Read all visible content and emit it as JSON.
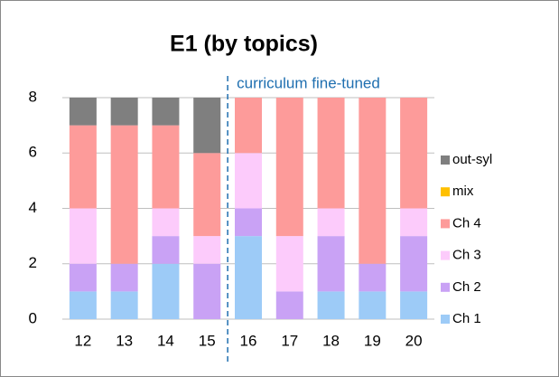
{
  "chart_data": {
    "type": "stacked_bar",
    "title": "E1 (by topics)",
    "annotation": "curriculum fine-tuned",
    "categories": [
      "12",
      "13",
      "14",
      "15",
      "16",
      "17",
      "18",
      "19",
      "20"
    ],
    "series": [
      {
        "name": "Ch 1",
        "color": "#9dcbf7",
        "values": [
          1,
          1,
          2,
          0,
          3,
          0,
          1,
          1,
          1
        ]
      },
      {
        "name": "Ch 2",
        "color": "#c9a2f5",
        "values": [
          1,
          1,
          1,
          2,
          1,
          1,
          2,
          1,
          2
        ]
      },
      {
        "name": "Ch 3",
        "color": "#fccbfb",
        "values": [
          2,
          0,
          1,
          1,
          2,
          2,
          1,
          0,
          1
        ]
      },
      {
        "name": "Ch 4",
        "color": "#fd9b9a",
        "values": [
          3,
          5,
          3,
          3,
          2,
          5,
          4,
          6,
          4
        ]
      },
      {
        "name": "mix",
        "color": "#ffc000",
        "values": [
          0,
          0,
          0,
          0,
          0,
          0,
          0,
          0,
          0
        ]
      },
      {
        "name": "out-syl",
        "color": "#7f7f7f",
        "values": [
          1,
          1,
          1,
          2,
          0,
          0,
          0,
          0,
          0
        ]
      }
    ],
    "ylim": [
      0,
      8
    ],
    "yticks": [
      0,
      2,
      4,
      6,
      8
    ],
    "grid": true,
    "legend": "right"
  }
}
